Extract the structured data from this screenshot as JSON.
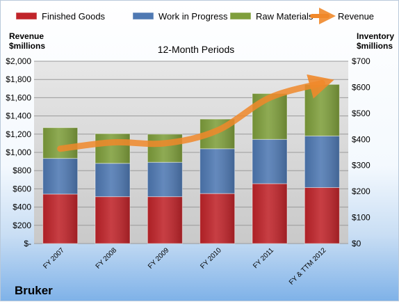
{
  "chart_data": {
    "type": "bar",
    "stacked": true,
    "subtitle": "12-Month Periods",
    "company": "Bruker",
    "ylabel_left": [
      "Revenue",
      "$millions"
    ],
    "ylabel_right": [
      "Inventory",
      "$millions"
    ],
    "categories": [
      "FY 2007",
      "FY 2008",
      "FY 2009",
      "FY 2010",
      "FY 2011",
      "FY & TTM 2012"
    ],
    "left_axis": {
      "ylim": [
        0,
        2000
      ],
      "ticks": [
        0,
        200,
        400,
        600,
        800,
        1000,
        1200,
        1400,
        1600,
        1800,
        2000
      ],
      "tick_labels": [
        "$-",
        "$200",
        "$400",
        "$600",
        "$800",
        "$1,000",
        "$1,200",
        "$1,400",
        "$1,600",
        "$1,800",
        "$2,000"
      ]
    },
    "right_axis": {
      "ylim": [
        0,
        700
      ],
      "ticks": [
        0,
        100,
        200,
        300,
        400,
        500,
        600,
        700
      ],
      "tick_labels": [
        "$0",
        "$100",
        "$200",
        "$300",
        "$400",
        "$500",
        "$600",
        "$700"
      ]
    },
    "series": [
      {
        "name": "Finished Goods",
        "axis": "right",
        "color": "#c0242a",
        "values": [
          190,
          180,
          180,
          192,
          230,
          215
        ]
      },
      {
        "name": "Work in Progress",
        "axis": "right",
        "color": "#4f79b3",
        "values": [
          137,
          128,
          132,
          172,
          170,
          198
        ]
      },
      {
        "name": "Raw Materials",
        "axis": "right",
        "color": "#7f9f3c",
        "values": [
          118,
          114,
          108,
          114,
          176,
          198
        ]
      },
      {
        "name": "Revenue",
        "axis": "left",
        "type": "line",
        "color": "#f0882a",
        "values": [
          1040,
          1110,
          1100,
          1240,
          1600,
          1760
        ]
      }
    ],
    "grid": true,
    "legend_position": "top"
  }
}
